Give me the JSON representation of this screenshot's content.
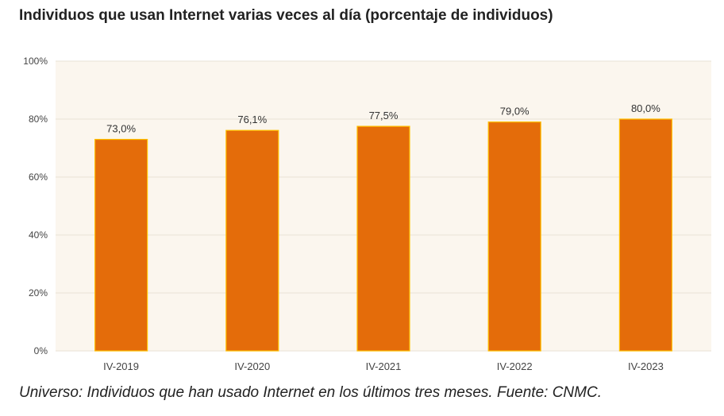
{
  "chart_data": {
    "type": "bar",
    "title": "Individuos que usan Internet varias veces al día (porcentaje de individuos)",
    "categories": [
      "IV-2019",
      "IV-2020",
      "IV-2021",
      "IV-2022",
      "IV-2023"
    ],
    "values": [
      73.0,
      76.1,
      77.5,
      79.0,
      80.0
    ],
    "value_labels": [
      "73,0%",
      "76,1%",
      "77,5%",
      "79,0%",
      "80,0%"
    ],
    "y_ticks": [
      "0%",
      "20%",
      "40%",
      "60%",
      "80%",
      "100%"
    ],
    "ylim": [
      0,
      100
    ],
    "xlabel": "",
    "ylabel": "",
    "grid": true,
    "colors": {
      "bar": "#E46C0A",
      "bar_edge": "#FFC000",
      "plot_background": "#FBF6EE",
      "gridline": "#E9E2D6"
    }
  },
  "caption": "Universo: Individuos que han usado Internet en los últimos tres meses. Fuente: CNMC."
}
